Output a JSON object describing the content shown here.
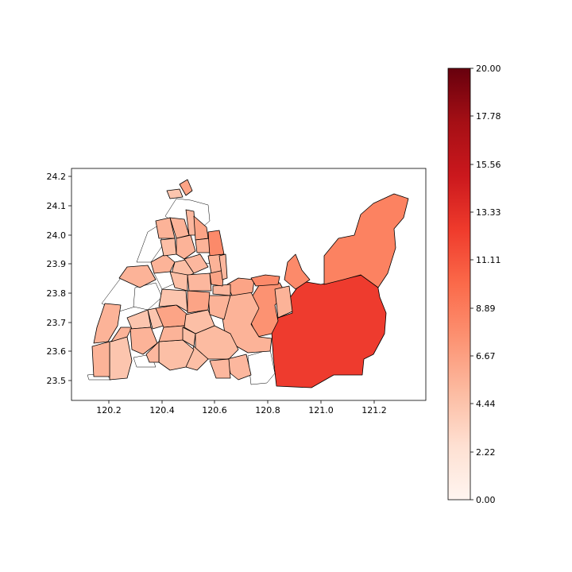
{
  "chart_data": {
    "type": "choropleth",
    "x_ticks": [
      "120.2",
      "120.4",
      "120.6",
      "120.8",
      "121.0",
      "121.2"
    ],
    "y_ticks": [
      "23.5",
      "23.6",
      "23.7",
      "23.8",
      "23.9",
      "24.0",
      "24.1",
      "24.2"
    ],
    "xlim": [
      120.05,
      121.39
    ],
    "ylim": [
      23.43,
      24.23
    ],
    "colorbar": {
      "ticks": [
        "0.00",
        "2.22",
        "4.44",
        "6.67",
        "8.89",
        "11.11",
        "13.33",
        "15.56",
        "17.78",
        "20.00"
      ],
      "range": [
        0,
        20
      ],
      "colormap": "Reds"
    }
  }
}
